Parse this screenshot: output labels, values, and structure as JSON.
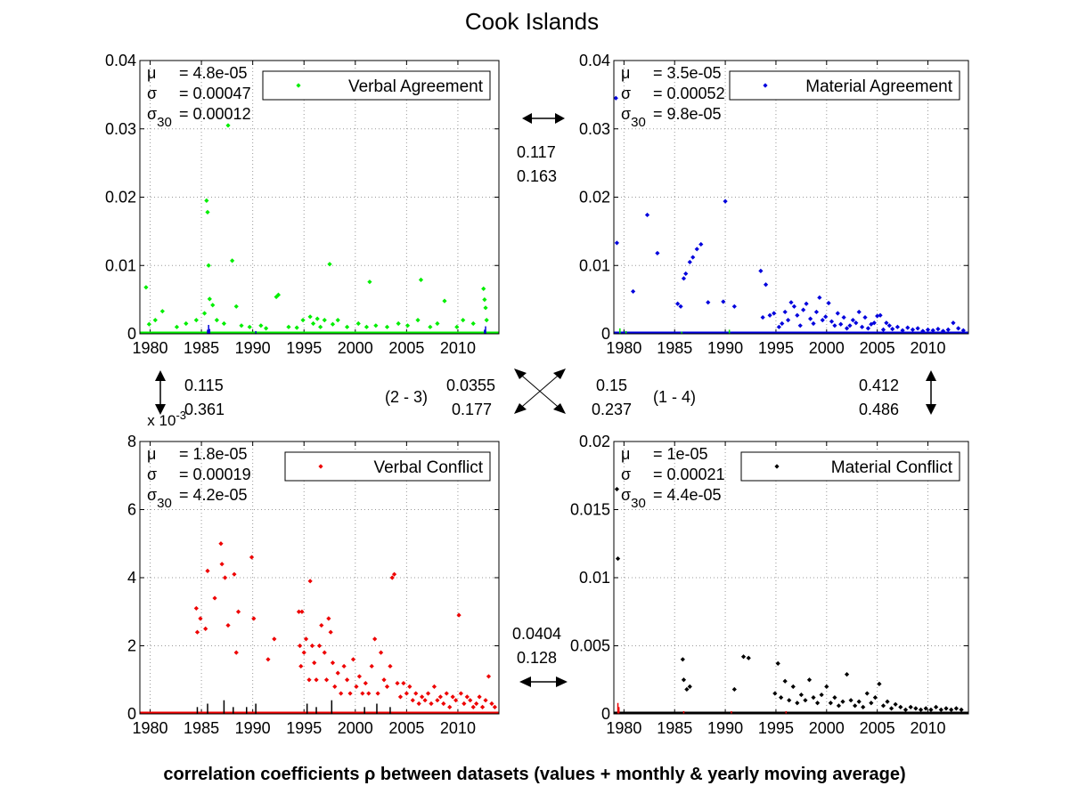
{
  "figure": {
    "title": "Cook Islands",
    "footer": "correlation coefficients ρ between datasets (values + monthly & yearly moving average)"
  },
  "colors": {
    "verbal_agreement": "#00ee00",
    "material_agreement": "#0000dd",
    "verbal_conflict": "#ee0000",
    "material_conflict": "#000000",
    "grid": "#b0b0b0"
  },
  "correlations": {
    "top": {
      "v1": "0.117",
      "v2": "0.163"
    },
    "bottom": {
      "v1": "0.0404",
      "v2": "0.128"
    },
    "left": {
      "v1": "0.115",
      "v2": "0.361"
    },
    "right": {
      "v1": "0.412",
      "v2": "0.486"
    },
    "diag_23": {
      "label": "(2 - 3)",
      "v1": "0.0355",
      "v2": "0.177"
    },
    "diag_14": {
      "label": "(1 - 4)",
      "v1": "0.15",
      "v2": "0.237"
    }
  },
  "chart_data": [
    {
      "type": "scatter",
      "title": "",
      "legend": "Verbal Agreement",
      "legend_position": "top-right",
      "color": "#00ee00",
      "xlim": [
        1979,
        2014
      ],
      "ylim": [
        0,
        0.04
      ],
      "xticks": [
        "1980",
        "1985",
        "1990",
        "1995",
        "2000",
        "2005",
        "2010"
      ],
      "yticks": [
        "0",
        "0.01",
        "0.02",
        "0.03",
        "0.04"
      ],
      "y_exponent": "",
      "grid": true,
      "stats": {
        "mu": "= 4.8e-05",
        "sigma": "= 0.00047",
        "sigma30": "= 0.00012"
      },
      "x": [
        1979.6,
        1979.9,
        1980.5,
        1981.2,
        1982.6,
        1983.5,
        1984.5,
        1985.3,
        1985.5,
        1985.6,
        1985.7,
        1985.8,
        1986.1,
        1986.5,
        1987.2,
        1987.6,
        1988.0,
        1988.4,
        1988.9,
        1989.7,
        1990.8,
        1991.3,
        1992.3,
        1992.5,
        1993.5,
        1994.3,
        1994.9,
        1995.6,
        1995.9,
        1996.3,
        1996.6,
        1997.0,
        1997.5,
        1997.8,
        1998.3,
        1999.2,
        2000.3,
        2001.1,
        2001.4,
        2002.0,
        2003.1,
        2004.2,
        2005.1,
        2006.1,
        2006.4,
        2007.3,
        2008.0,
        2008.7,
        2009.9,
        2010.5,
        2011.5,
        2012.5,
        2012.6,
        2012.7,
        2012.8
      ],
      "y": [
        0.0068,
        0.0014,
        0.002,
        0.0033,
        0.001,
        0.0015,
        0.002,
        0.003,
        0.0195,
        0.0178,
        0.01,
        0.0051,
        0.0042,
        0.002,
        0.0015,
        0.0305,
        0.0107,
        0.004,
        0.0012,
        0.001,
        0.0012,
        0.0008,
        0.0054,
        0.0057,
        0.001,
        0.0009,
        0.002,
        0.0025,
        0.0015,
        0.0022,
        0.001,
        0.002,
        0.0102,
        0.0014,
        0.002,
        0.001,
        0.0015,
        0.001,
        0.0076,
        0.0012,
        0.001,
        0.0015,
        0.0012,
        0.002,
        0.0079,
        0.001,
        0.0015,
        0.0048,
        0.001,
        0.002,
        0.0015,
        0.0066,
        0.005,
        0.0038,
        0.002
      ],
      "overlay_series": [
        {
          "color": "#0000dd",
          "x": [
            1985.6,
            1985.7,
            1985.8,
            1990.3,
            2012.6,
            2012.7
          ],
          "y": [
            0.0006,
            0.0013,
            0.0007,
            0.0004,
            0.0006,
            0.0011
          ]
        }
      ]
    },
    {
      "type": "scatter",
      "title": "",
      "legend": "Material Agreement",
      "legend_position": "top-right",
      "color": "#0000dd",
      "xlim": [
        1979,
        2014
      ],
      "ylim": [
        0,
        0.04
      ],
      "xticks": [
        "1980",
        "1985",
        "1990",
        "1995",
        "2000",
        "2005",
        "2010"
      ],
      "yticks": [
        "0",
        "0.01",
        "0.02",
        "0.03",
        "0.04"
      ],
      "y_exponent": "",
      "grid": true,
      "stats": {
        "mu": "= 3.5e-05",
        "sigma": "= 0.00052",
        "sigma30": "= 9.8e-05"
      },
      "x": [
        1979.2,
        1979.3,
        1980.9,
        1982.3,
        1983.3,
        1985.3,
        1985.6,
        1985.9,
        1986.1,
        1986.5,
        1986.8,
        1987.2,
        1987.6,
        1988.3,
        1989.8,
        1990.0,
        1990.9,
        1993.5,
        1993.7,
        1994.0,
        1994.4,
        1994.8,
        1995.3,
        1995.6,
        1995.9,
        1996.2,
        1996.5,
        1996.8,
        1997.1,
        1997.4,
        1997.7,
        1998.0,
        1998.4,
        1998.7,
        1999.0,
        1999.3,
        1999.6,
        1999.9,
        2000.2,
        2000.5,
        2000.8,
        2001.1,
        2001.4,
        2001.7,
        2002.0,
        2002.3,
        2002.6,
        2002.9,
        2003.2,
        2003.5,
        2003.8,
        2004.1,
        2004.4,
        2004.7,
        2005.0,
        2005.3,
        2005.6,
        2005.9,
        2006.2,
        2006.5,
        2007.0,
        2007.5,
        2008.0,
        2008.5,
        2009.0,
        2009.5,
        2010.0,
        2010.5,
        2011.0,
        2011.5,
        2012.0,
        2012.5,
        2013.0,
        2013.5
      ],
      "y": [
        0.0345,
        0.0133,
        0.0062,
        0.0174,
        0.0118,
        0.0044,
        0.004,
        0.0081,
        0.0088,
        0.0105,
        0.0112,
        0.0124,
        0.0131,
        0.0046,
        0.0047,
        0.0194,
        0.004,
        0.0092,
        0.0024,
        0.0072,
        0.0027,
        0.003,
        0.001,
        0.0015,
        0.0032,
        0.002,
        0.0046,
        0.004,
        0.0027,
        0.0012,
        0.0035,
        0.0044,
        0.0022,
        0.0015,
        0.0032,
        0.0053,
        0.002,
        0.0025,
        0.0045,
        0.0018,
        0.0012,
        0.003,
        0.0014,
        0.0024,
        0.0008,
        0.0012,
        0.002,
        0.0016,
        0.0032,
        0.001,
        0.0024,
        0.0008,
        0.0014,
        0.0016,
        0.0026,
        0.0027,
        0.0006,
        0.0016,
        0.0012,
        0.0007,
        0.001,
        0.0005,
        0.0009,
        0.0006,
        0.0008,
        0.0004,
        0.0006,
        0.0005,
        0.0007,
        0.0004,
        0.0006,
        0.0016,
        0.0008,
        0.0005
      ],
      "overlay_series": [
        {
          "color": "#00ee00",
          "x": [
            1979.6,
            1980.2,
            1985.7,
            1990.4
          ],
          "y": [
            0.0008,
            0.0004,
            0.0003,
            0.0006
          ]
        }
      ]
    },
    {
      "type": "scatter",
      "title": "",
      "legend": "Verbal Conflict",
      "legend_position": "top-right",
      "color": "#ee0000",
      "xlim": [
        1979,
        2014
      ],
      "ylim": [
        0,
        0.008
      ],
      "xticks": [
        "1980",
        "1985",
        "1990",
        "1995",
        "2000",
        "2005",
        "2010"
      ],
      "yticks": [
        "0",
        "2",
        "4",
        "6",
        "8"
      ],
      "y_exponent": "x 10-3",
      "grid": true,
      "stats": {
        "mu": "= 1.8e-05",
        "sigma": "= 0.00019",
        "sigma30": "= 4.2e-05"
      },
      "x": [
        1984.5,
        1984.6,
        1984.9,
        1985.4,
        1985.6,
        1986.3,
        1986.9,
        1987.0,
        1987.3,
        1987.6,
        1988.2,
        1988.4,
        1988.6,
        1989.9,
        1990.1,
        1991.5,
        1992.1,
        1994.5,
        1994.6,
        1994.7,
        1994.8,
        1995.0,
        1995.2,
        1995.5,
        1995.6,
        1995.8,
        1996.0,
        1996.2,
        1996.5,
        1996.7,
        1997.0,
        1997.2,
        1997.4,
        1997.6,
        1997.8,
        1998.0,
        1998.3,
        1998.6,
        1998.9,
        1999.2,
        1999.5,
        1999.8,
        2000.1,
        2000.4,
        2000.7,
        2001.0,
        2001.3,
        2001.6,
        2001.9,
        2002.2,
        2002.5,
        2002.8,
        2003.1,
        2003.4,
        2003.6,
        2003.8,
        2004.1,
        2004.4,
        2004.7,
        2005.0,
        2005.3,
        2005.6,
        2005.9,
        2006.2,
        2006.5,
        2006.8,
        2007.1,
        2007.4,
        2007.7,
        2008.0,
        2008.3,
        2008.6,
        2008.9,
        2009.2,
        2009.5,
        2009.8,
        2010.1,
        2010.3,
        2010.6,
        2010.9,
        2011.2,
        2011.5,
        2011.8,
        2012.1,
        2012.4,
        2012.7,
        2013.0,
        2013.3,
        2013.6
      ],
      "y": [
        0.0031,
        0.0024,
        0.0028,
        0.0025,
        0.0042,
        0.0034,
        0.005,
        0.0044,
        0.004,
        0.0026,
        0.0041,
        0.0018,
        0.003,
        0.0046,
        0.0028,
        0.0016,
        0.0022,
        0.003,
        0.002,
        0.0014,
        0.003,
        0.0018,
        0.0022,
        0.001,
        0.0039,
        0.002,
        0.0015,
        0.001,
        0.002,
        0.0026,
        0.0018,
        0.001,
        0.0028,
        0.0024,
        0.0015,
        0.0008,
        0.0012,
        0.0006,
        0.0014,
        0.001,
        0.0006,
        0.0016,
        0.0008,
        0.0011,
        0.0006,
        0.0009,
        0.0006,
        0.0014,
        0.0022,
        0.0006,
        0.0018,
        0.001,
        0.0008,
        0.0014,
        0.004,
        0.0041,
        0.0009,
        0.0005,
        0.0009,
        0.0006,
        0.0008,
        0.0004,
        0.0006,
        0.0003,
        0.0005,
        0.0004,
        0.0006,
        0.0003,
        0.0008,
        0.0004,
        0.0005,
        0.0003,
        0.0006,
        0.0002,
        0.0005,
        0.0004,
        0.0029,
        0.0006,
        0.0003,
        0.0005,
        0.0004,
        0.0002,
        0.0003,
        0.0005,
        0.0002,
        0.0004,
        0.0011,
        0.0003,
        0.0002
      ],
      "overlay_series": [
        {
          "color": "#000000",
          "x": [
            1984.6,
            1985.6,
            1987.2,
            1988.1,
            1989.4,
            1990.3,
            1995.3,
            1996.2,
            1997.7,
            2000.9,
            2002.1,
            2003.4
          ],
          "y": [
            0.0002,
            0.0003,
            0.0004,
            0.0002,
            0.0002,
            0.0003,
            0.0003,
            0.0002,
            0.0004,
            0.0002,
            0.0003,
            0.0002
          ]
        }
      ]
    },
    {
      "type": "scatter",
      "title": "",
      "legend": "Material Conflict",
      "legend_position": "top-right",
      "color": "#000000",
      "xlim": [
        1979,
        2014
      ],
      "ylim": [
        0,
        0.02
      ],
      "xticks": [
        "1980",
        "1985",
        "1990",
        "1995",
        "2000",
        "2005",
        "2010"
      ],
      "yticks": [
        "0",
        "0.005",
        "0.01",
        "0.015",
        "0.02"
      ],
      "y_exponent": "",
      "grid": true,
      "stats": {
        "mu": "= 1e-05",
        "sigma": "= 0.00021",
        "sigma30": "= 4.4e-05"
      },
      "x": [
        1979.3,
        1979.4,
        1985.8,
        1985.9,
        1986.2,
        1986.5,
        1990.9,
        1991.8,
        1992.3,
        1994.9,
        1995.2,
        1995.5,
        1995.9,
        1996.3,
        1996.7,
        1997.1,
        1997.5,
        1997.9,
        1998.3,
        1998.7,
        1999.1,
        1999.5,
        2000.0,
        2000.4,
        2000.8,
        2001.2,
        2001.6,
        2002.0,
        2002.4,
        2002.8,
        2003.2,
        2003.6,
        2004.0,
        2004.4,
        2004.8,
        2005.2,
        2005.6,
        2006.0,
        2006.4,
        2006.8,
        2007.3,
        2007.8,
        2008.3,
        2008.8,
        2009.3,
        2009.8,
        2010.3,
        2010.8,
        2011.3,
        2011.8,
        2012.3,
        2012.8,
        2013.3
      ],
      "y": [
        0.0165,
        0.0114,
        0.004,
        0.0025,
        0.0018,
        0.002,
        0.0018,
        0.0042,
        0.0041,
        0.0015,
        0.0037,
        0.0012,
        0.0024,
        0.001,
        0.002,
        0.0008,
        0.0014,
        0.001,
        0.0025,
        0.0012,
        0.0008,
        0.0014,
        0.002,
        0.0008,
        0.0012,
        0.0006,
        0.0009,
        0.0029,
        0.001,
        0.0006,
        0.0009,
        0.0005,
        0.0015,
        0.0008,
        0.0012,
        0.0022,
        0.0006,
        0.0009,
        0.0004,
        0.0007,
        0.0005,
        0.0003,
        0.0005,
        0.0004,
        0.0003,
        0.0004,
        0.0003,
        0.0005,
        0.0003,
        0.0004,
        0.0003,
        0.0004,
        0.0003
      ],
      "overlay_series": [
        {
          "color": "#ee0000",
          "x": [
            1979.4,
            1979.5,
            1985.9,
            1990.6,
            1996.0
          ],
          "y": [
            0.0008,
            0.0005,
            0.0002,
            0.0002,
            0.0002
          ]
        }
      ]
    }
  ]
}
